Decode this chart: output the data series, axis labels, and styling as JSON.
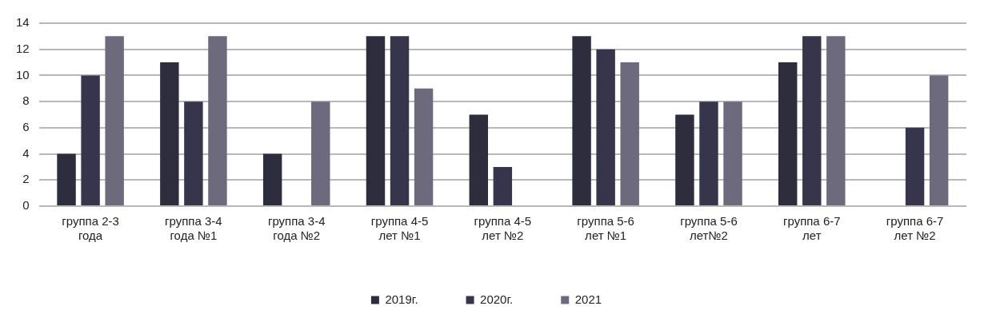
{
  "chart_data": {
    "type": "bar",
    "categories": [
      "группа 2-3 года",
      "группа 3-4 года №1",
      "группа 3-4 года №2",
      "группа 4-5 лет №1",
      "группа 4-5 лет №2",
      "группа 5-6 лет №1",
      "группа 5-6 лет№2",
      "группа 6-7 лет",
      "группа 6-7 лет №2"
    ],
    "series": [
      {
        "name": "2019г.",
        "color": "#2e2d3d",
        "values": [
          4,
          11,
          4,
          13,
          7,
          13,
          7,
          11,
          null
        ]
      },
      {
        "name": "2020г.",
        "color": "#36354c",
        "values": [
          10,
          8,
          null,
          13,
          3,
          12,
          8,
          13,
          6
        ]
      },
      {
        "name": "2021",
        "color": "#6e6a7e",
        "values": [
          13,
          13,
          8,
          9,
          null,
          11,
          8,
          13,
          10
        ]
      }
    ],
    "ylim": [
      0,
      14
    ],
    "yticks": [
      0,
      2,
      4,
      6,
      8,
      10,
      12,
      14
    ],
    "grid": "y",
    "legend": "bottom"
  }
}
